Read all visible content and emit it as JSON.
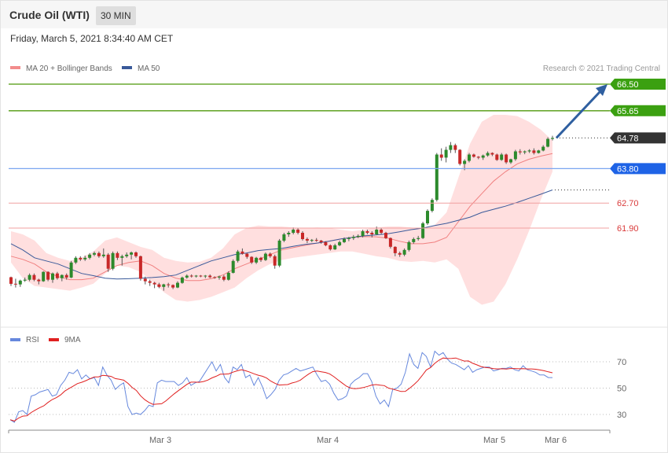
{
  "header": {
    "title": "Crude Oil (WTI)",
    "interval": "30 MIN",
    "datetime": "Friday, March 5, 2021 8:34:40 AM CET"
  },
  "legend": {
    "ma20": "MA 20 + Bollinger Bands",
    "ma50": "MA 50",
    "rsi": "RSI",
    "rsi9": "9MA"
  },
  "credit": "Research © 2021 Trading Central",
  "colors": {
    "up": "#2c8a2c",
    "down": "#c82828",
    "band_fill": "#ffd9d9",
    "ma20": "#f08080",
    "ma50": "#3a5a9a",
    "target": "#3ba011",
    "pivot": "#1e63e6",
    "support": "#d93a3a",
    "last": "#333333",
    "arrow": "#2f5fa0",
    "rsi": "#6688dd",
    "rsi9": "#e02020"
  },
  "levels": [
    {
      "value": "66.50",
      "type": "target"
    },
    {
      "value": "65.65",
      "type": "target"
    },
    {
      "value": "64.78",
      "type": "last"
    },
    {
      "value": "63.80",
      "type": "pivot"
    },
    {
      "value": "62.70",
      "type": "support"
    },
    {
      "value": "61.90",
      "type": "support"
    }
  ],
  "rsi_ticks": [
    "70",
    "50",
    "30"
  ],
  "x_labels": [
    "Mar 3",
    "Mar 4",
    "Mar 5",
    "Mar 6"
  ],
  "chart_data": {
    "type": "candlestick",
    "y_scale": "price",
    "candles": [
      [
        60.33,
        60.35,
        60.05,
        60.12
      ],
      [
        60.12,
        60.28,
        60.0,
        60.1
      ],
      [
        60.1,
        60.25,
        60.02,
        60.22
      ],
      [
        60.22,
        60.32,
        60.18,
        60.25
      ],
      [
        60.25,
        60.45,
        60.2,
        60.4
      ],
      [
        60.4,
        60.45,
        60.2,
        60.25
      ],
      [
        60.25,
        60.28,
        60.1,
        60.2
      ],
      [
        60.2,
        60.52,
        60.18,
        60.5
      ],
      [
        60.5,
        60.52,
        60.2,
        60.25
      ],
      [
        60.25,
        60.48,
        60.15,
        60.45
      ],
      [
        60.45,
        60.5,
        60.25,
        60.3
      ],
      [
        60.3,
        60.42,
        60.2,
        60.4
      ],
      [
        60.4,
        60.45,
        60.25,
        60.32
      ],
      [
        60.32,
        60.85,
        60.3,
        60.8
      ],
      [
        60.8,
        61.0,
        60.75,
        60.95
      ],
      [
        60.95,
        61.0,
        60.85,
        60.9
      ],
      [
        60.9,
        61.02,
        60.85,
        60.95
      ],
      [
        60.95,
        61.1,
        60.9,
        61.05
      ],
      [
        61.05,
        61.15,
        61.0,
        61.1
      ],
      [
        61.1,
        61.15,
        60.95,
        61.0
      ],
      [
        61.0,
        61.25,
        60.95,
        61.05
      ],
      [
        61.05,
        61.1,
        60.5,
        60.6
      ],
      [
        60.6,
        61.15,
        60.55,
        61.1
      ],
      [
        61.1,
        61.15,
        60.88,
        60.95
      ],
      [
        60.95,
        61.05,
        60.7,
        61.0
      ],
      [
        61.0,
        61.12,
        60.95,
        61.05
      ],
      [
        61.05,
        61.15,
        60.9,
        61.12
      ],
      [
        61.12,
        61.15,
        60.95,
        61.0
      ],
      [
        61.0,
        61.02,
        60.22,
        60.28
      ],
      [
        60.28,
        60.35,
        60.1,
        60.2
      ],
      [
        60.2,
        60.25,
        60.05,
        60.15
      ],
      [
        60.15,
        60.18,
        59.98,
        60.1
      ],
      [
        60.1,
        60.15,
        59.98,
        60.02
      ],
      [
        60.02,
        60.12,
        59.9,
        60.1
      ],
      [
        60.1,
        60.15,
        60.0,
        60.08
      ],
      [
        60.08,
        60.1,
        59.95,
        60.0
      ],
      [
        60.0,
        60.2,
        59.98,
        60.15
      ],
      [
        60.15,
        60.35,
        60.12,
        60.32
      ],
      [
        60.32,
        60.42,
        60.28,
        60.38
      ],
      [
        60.38,
        60.42,
        60.32,
        60.37
      ],
      [
        60.37,
        60.4,
        60.32,
        60.38
      ],
      [
        60.38,
        60.4,
        60.33,
        60.36
      ],
      [
        60.36,
        60.4,
        60.3,
        60.38
      ],
      [
        60.38,
        60.42,
        60.3,
        60.33
      ],
      [
        60.33,
        60.36,
        60.28,
        60.32
      ],
      [
        60.32,
        60.38,
        60.25,
        60.35
      ],
      [
        60.35,
        60.4,
        60.2,
        60.25
      ],
      [
        60.25,
        60.52,
        60.22,
        60.47
      ],
      [
        60.47,
        60.9,
        60.45,
        60.85
      ],
      [
        60.85,
        61.2,
        60.8,
        61.15
      ],
      [
        61.15,
        61.25,
        61.05,
        61.08
      ],
      [
        61.08,
        61.1,
        60.92,
        60.98
      ],
      [
        60.98,
        61.0,
        60.75,
        60.8
      ],
      [
        60.8,
        60.98,
        60.75,
        60.95
      ],
      [
        60.95,
        60.98,
        60.82,
        60.88
      ],
      [
        60.88,
        61.12,
        60.85,
        61.08
      ],
      [
        61.08,
        61.12,
        60.95,
        61.0
      ],
      [
        61.0,
        61.05,
        60.6,
        60.7
      ],
      [
        60.7,
        61.55,
        60.65,
        61.5
      ],
      [
        61.5,
        61.75,
        61.45,
        61.7
      ],
      [
        61.7,
        61.8,
        61.62,
        61.75
      ],
      [
        61.75,
        61.92,
        61.7,
        61.85
      ],
      [
        61.85,
        61.9,
        61.7,
        61.75
      ],
      [
        61.75,
        61.8,
        61.5,
        61.55
      ],
      [
        61.55,
        61.6,
        61.42,
        61.5
      ],
      [
        61.5,
        61.55,
        61.45,
        61.52
      ],
      [
        61.52,
        61.58,
        61.46,
        61.5
      ],
      [
        61.5,
        61.52,
        61.4,
        61.45
      ],
      [
        61.45,
        61.48,
        61.32,
        61.35
      ],
      [
        61.35,
        61.38,
        61.18,
        61.22
      ],
      [
        61.22,
        61.4,
        61.2,
        61.35
      ],
      [
        61.35,
        61.5,
        61.32,
        61.45
      ],
      [
        61.45,
        61.6,
        61.42,
        61.55
      ],
      [
        61.55,
        61.62,
        61.48,
        61.58
      ],
      [
        61.58,
        61.68,
        61.52,
        61.62
      ],
      [
        61.62,
        61.7,
        61.58,
        61.65
      ],
      [
        61.65,
        61.85,
        61.6,
        61.8
      ],
      [
        61.8,
        61.85,
        61.7,
        61.75
      ],
      [
        61.75,
        61.8,
        61.6,
        61.7
      ],
      [
        61.7,
        61.95,
        61.68,
        61.85
      ],
      [
        61.85,
        61.9,
        61.7,
        61.75
      ],
      [
        61.75,
        61.78,
        61.55,
        61.58
      ],
      [
        61.58,
        61.6,
        61.25,
        61.3
      ],
      [
        61.3,
        61.32,
        61.0,
        61.1
      ],
      [
        61.1,
        61.15,
        60.98,
        61.05
      ],
      [
        61.05,
        61.25,
        61.0,
        61.2
      ],
      [
        61.2,
        61.5,
        61.15,
        61.45
      ],
      [
        61.45,
        61.6,
        61.4,
        61.55
      ],
      [
        61.55,
        61.65,
        61.5,
        61.58
      ],
      [
        61.58,
        62.1,
        61.55,
        62.05
      ],
      [
        62.05,
        62.5,
        62.0,
        62.45
      ],
      [
        62.45,
        62.85,
        62.4,
        62.8
      ],
      [
        62.8,
        64.3,
        62.75,
        64.25
      ],
      [
        64.25,
        64.45,
        64.05,
        64.15
      ],
      [
        64.15,
        64.5,
        64.0,
        64.4
      ],
      [
        64.4,
        64.65,
        64.3,
        64.55
      ],
      [
        64.55,
        64.6,
        64.3,
        64.4
      ],
      [
        64.4,
        64.42,
        63.9,
        63.95
      ],
      [
        63.95,
        64.1,
        63.75,
        64.05
      ],
      [
        64.05,
        64.3,
        64.0,
        64.25
      ],
      [
        64.25,
        64.28,
        64.15,
        64.18
      ],
      [
        64.18,
        64.2,
        64.1,
        64.15
      ],
      [
        64.15,
        64.25,
        64.08,
        64.22
      ],
      [
        64.22,
        64.35,
        64.18,
        64.3
      ],
      [
        64.3,
        64.32,
        64.2,
        64.25
      ],
      [
        64.25,
        64.28,
        64.05,
        64.08
      ],
      [
        64.08,
        64.3,
        64.05,
        64.25
      ],
      [
        64.25,
        64.28,
        63.95,
        64.0
      ],
      [
        64.0,
        64.12,
        63.95,
        64.1
      ],
      [
        64.1,
        64.4,
        64.05,
        64.35
      ],
      [
        64.35,
        64.42,
        64.25,
        64.32
      ],
      [
        64.32,
        64.38,
        64.26,
        64.35
      ],
      [
        64.35,
        64.42,
        64.3,
        64.38
      ],
      [
        64.38,
        64.45,
        64.25,
        64.3
      ],
      [
        64.3,
        64.4,
        64.28,
        64.38
      ],
      [
        64.38,
        64.55,
        64.35,
        64.5
      ],
      [
        64.5,
        64.8,
        64.48,
        64.75
      ],
      [
        64.75,
        64.85,
        64.7,
        64.78
      ]
    ],
    "ma20": [
      61.0,
      60.9,
      60.75,
      60.5,
      60.35,
      60.25,
      60.25,
      60.3,
      60.5,
      60.7,
      60.8,
      60.85,
      60.7,
      60.45,
      60.3,
      60.22,
      60.22,
      60.28,
      60.4,
      60.6,
      60.75,
      60.9,
      61.05,
      61.2,
      61.28,
      61.35,
      61.42,
      61.48,
      61.55,
      61.6,
      61.63,
      61.62,
      61.58,
      61.48,
      61.4,
      61.4,
      61.45,
      61.6,
      62.1,
      62.6,
      63.0,
      63.4,
      63.7,
      63.95,
      64.1,
      64.2,
      64.28
    ],
    "ma50": [
      61.4,
      61.2,
      60.95,
      60.85,
      60.75,
      60.6,
      60.45,
      60.38,
      60.3,
      60.27,
      60.28,
      60.3,
      60.32,
      60.35,
      60.4,
      60.55,
      60.7,
      60.85,
      60.95,
      61.05,
      61.1,
      61.18,
      61.22,
      61.25,
      61.32,
      61.38,
      61.42,
      61.48,
      61.55,
      61.6,
      61.65,
      61.68,
      61.72,
      61.78,
      61.85,
      61.9,
      61.98,
      62.05,
      62.15,
      62.25,
      62.4,
      62.5,
      62.6,
      62.72,
      62.85,
      62.98,
      63.12
    ],
    "bollinger": {
      "upper": [
        61.8,
        61.7,
        61.5,
        61.1,
        60.95,
        60.85,
        60.95,
        61.15,
        61.5,
        61.6,
        61.45,
        61.3,
        61.2,
        60.95,
        60.85,
        60.8,
        60.82,
        60.95,
        61.25,
        61.7,
        61.9,
        61.98,
        61.95,
        61.95,
        61.92,
        61.9,
        61.92,
        61.9,
        61.85,
        61.8,
        61.85,
        61.92,
        61.95,
        61.95,
        61.92,
        61.85,
        62.0,
        62.4,
        63.5,
        64.6,
        65.3,
        65.52,
        65.52,
        65.48,
        65.3,
        65.05,
        64.7
      ],
      "lower": [
        60.8,
        60.3,
        60.05,
        60.0,
        59.95,
        59.9,
        60.0,
        60.12,
        60.45,
        60.7,
        60.65,
        60.5,
        60.2,
        59.85,
        59.6,
        59.55,
        59.6,
        59.7,
        59.85,
        60.0,
        60.3,
        60.55,
        60.75,
        60.88,
        60.95,
        61.0,
        61.05,
        61.1,
        61.15,
        61.15,
        61.08,
        61.0,
        60.95,
        60.85,
        60.82,
        60.85,
        60.8,
        60.9,
        60.6,
        59.7,
        59.45,
        59.55,
        60.1,
        60.9,
        61.8,
        62.8,
        63.7
      ]
    },
    "rsi": [
      26,
      24,
      32,
      33,
      30,
      44,
      45,
      47,
      48,
      49,
      44,
      45,
      52,
      56,
      62,
      61,
      64,
      57,
      60,
      57,
      58,
      52,
      66,
      60,
      56,
      49,
      52,
      54,
      36,
      30,
      31,
      30,
      33,
      37,
      36,
      54,
      56,
      55,
      55,
      55,
      52,
      54,
      58,
      52,
      54,
      55,
      60,
      65,
      70,
      63,
      68,
      58,
      54,
      66,
      64,
      68,
      58,
      60,
      52,
      58,
      51,
      42,
      45,
      49,
      56,
      60,
      61,
      63,
      65,
      63,
      64,
      65,
      66,
      60,
      55,
      56,
      53,
      46,
      41,
      42,
      44,
      53,
      56,
      58,
      61,
      61,
      55,
      44,
      38,
      41,
      36,
      49,
      50,
      53,
      62,
      76,
      68,
      65,
      77,
      74,
      66,
      78,
      75,
      77,
      72,
      69,
      68,
      66,
      64,
      67,
      62,
      64,
      65,
      66,
      66,
      63,
      64,
      65,
      65,
      66,
      64,
      63,
      67,
      64,
      63,
      62,
      60,
      60,
      58,
      58
    ]
  }
}
